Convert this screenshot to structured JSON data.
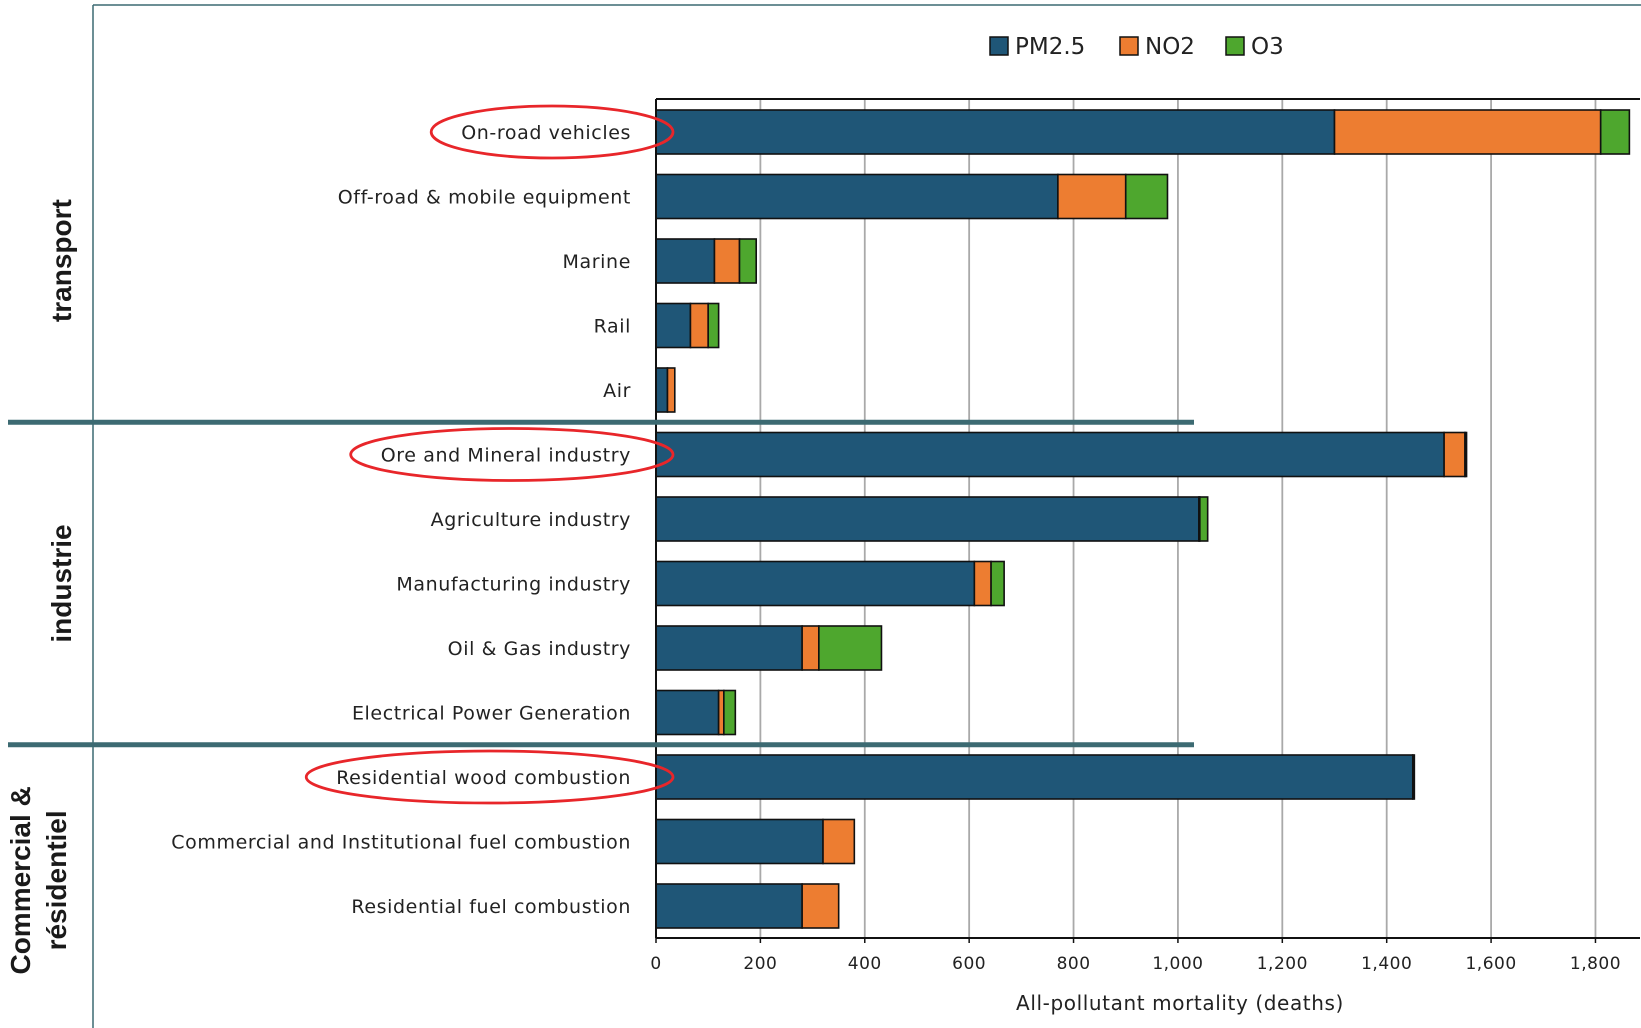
{
  "chart_data": {
    "type": "bar",
    "orientation": "horizontal",
    "stacked": true,
    "categories": [
      "On-road vehicles",
      "Off-road & mobile equipment",
      "Marine",
      "Rail",
      "Air",
      "Ore and Mineral industry",
      "Agriculture industry",
      "Manufacturing industry",
      "Oil & Gas industry",
      "Electrical Power Generation",
      "Residential wood combustion",
      "Commercial and Institutional fuel combustion",
      "Residential fuel combustion"
    ],
    "series": [
      {
        "name": "PM2.5",
        "color": "#1f5677",
        "values": [
          1300,
          770,
          112,
          66,
          22,
          1510,
          1040,
          610,
          280,
          120,
          1450,
          320,
          280
        ]
      },
      {
        "name": "NO2",
        "color": "#ed7d31",
        "values": [
          510,
          130,
          48,
          34,
          14,
          40,
          2,
          32,
          32,
          10,
          3,
          60,
          70
        ]
      },
      {
        "name": "O3",
        "color": "#4ea72e",
        "values": [
          55,
          80,
          32,
          20,
          0,
          3,
          15,
          25,
          120,
          22,
          0,
          0,
          0
        ]
      }
    ],
    "groups": [
      {
        "label": "transport",
        "from": 0,
        "to": 4
      },
      {
        "label": "industrie",
        "from": 5,
        "to": 9
      },
      {
        "label_lines": [
          "Commercial &",
          "résidentiel"
        ],
        "from": 10,
        "to": 12
      }
    ],
    "highlighted": [
      "On-road vehicles",
      "Ore and Mineral industry",
      "Residential wood combustion"
    ],
    "highlight_color": "#e8262a",
    "xlabel": "All-pollutant mortality (deaths)",
    "xlim": [
      0,
      1870
    ],
    "xticks": [
      0,
      200,
      400,
      600,
      800,
      1000,
      1200,
      1400,
      1600,
      1800
    ],
    "xtick_labels": [
      "0",
      "200",
      "400",
      "600",
      "800",
      "1,000",
      "1,200",
      "1,400",
      "1,600",
      "1,800"
    ],
    "grid": "vertical",
    "legend": "top-center",
    "separator_color": "#3c6a72"
  }
}
